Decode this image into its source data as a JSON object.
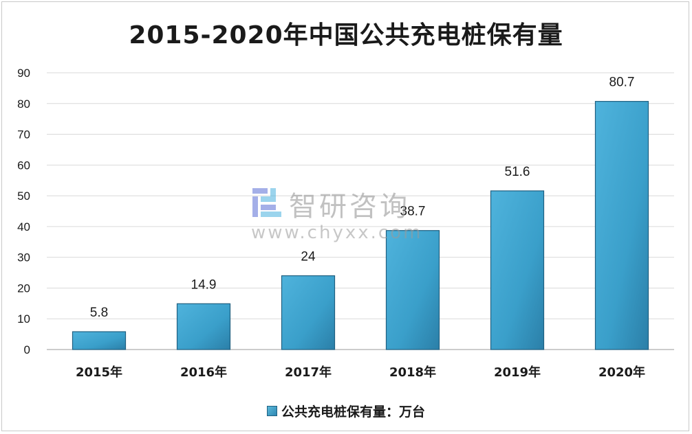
{
  "chart_data": {
    "type": "bar",
    "title": "2015-2020年中国公共充电桩保有量",
    "categories": [
      "2015年",
      "2016年",
      "2017年",
      "2018年",
      "2019年",
      "2020年"
    ],
    "series": [
      {
        "name": "公共充电桩保有量：万台",
        "values": [
          5.8,
          14.9,
          24,
          38.7,
          51.6,
          80.7
        ]
      }
    ],
    "data_labels": [
      "5.8",
      "14.9",
      "24",
      "38.7",
      "51.6",
      "80.7"
    ],
    "ylim": [
      0,
      90
    ],
    "yticks": [
      0,
      10,
      20,
      30,
      40,
      50,
      60,
      70,
      80,
      90
    ],
    "grid": true,
    "legend_position": "bottom",
    "colors": {
      "bar": "#3a9fca",
      "bar_dark": "#2b7fa8",
      "bar_border": "#1f5f80",
      "grid": "#d9d9d9"
    }
  },
  "watermark": {
    "name": "智研咨询",
    "url": "www.chyxx.com"
  }
}
